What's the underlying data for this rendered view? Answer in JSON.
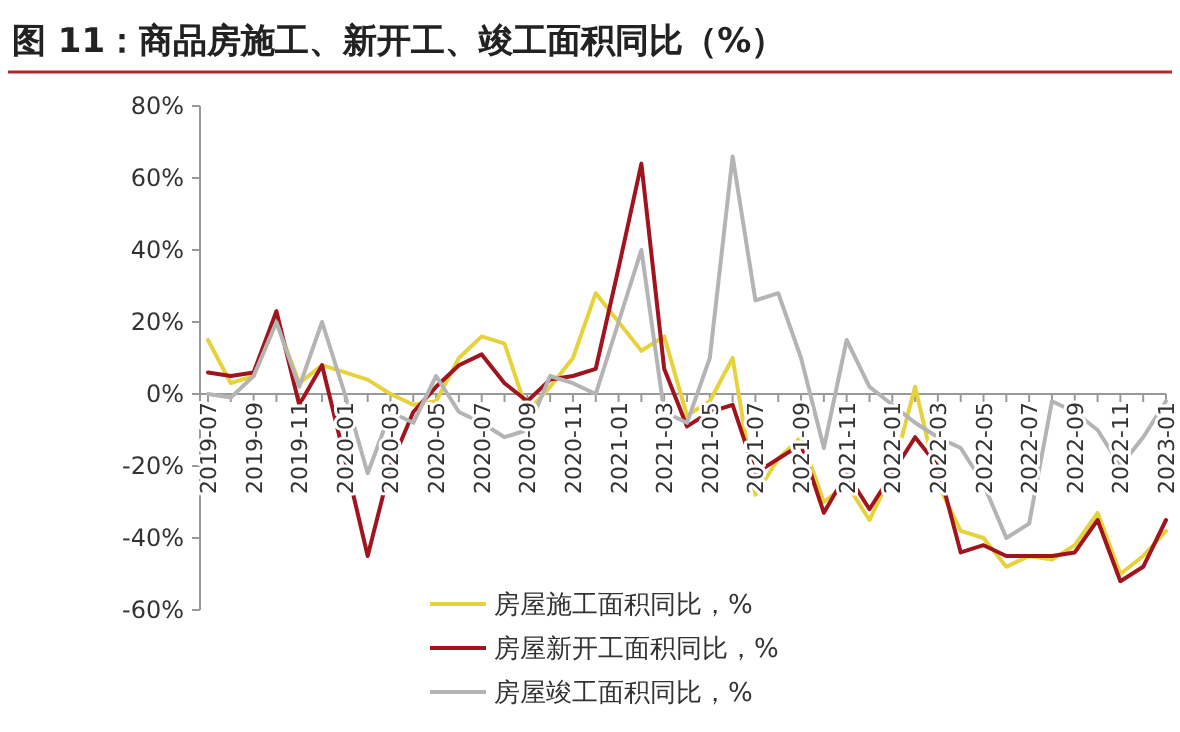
{
  "chart_data": {
    "type": "line",
    "title": "图 11：商品房施工、新开工、竣工面积同比（%）",
    "categories": [
      "2019-07",
      null,
      "2019-09",
      null,
      "2019-11",
      null,
      "2020-01",
      null,
      "2020-03",
      null,
      "2020-05",
      null,
      "2020-07",
      null,
      "2020-09",
      null,
      "2020-11",
      null,
      "2021-01",
      null,
      "2021-03",
      null,
      "2021-05",
      null,
      "2021-07",
      null,
      "2021-09",
      null,
      "2021-11",
      null,
      "2022-01",
      null,
      "2022-03",
      null,
      "2022-05",
      null,
      "2022-07",
      null,
      "2022-09",
      null,
      "2022-11",
      null,
      "2023-01"
    ],
    "series": [
      {
        "name": "房屋施工面积同比，%",
        "color": "#e6d23c",
        "values": [
          15,
          3,
          5,
          20,
          3,
          8,
          6,
          4,
          0,
          -3,
          -2,
          10,
          16,
          14,
          -5,
          2,
          10,
          28,
          20,
          12,
          16,
          -6,
          -2,
          10,
          -28,
          -18,
          -12,
          -30,
          -25,
          -35,
          -22,
          2,
          -25,
          -38,
          -40,
          -48,
          -45,
          -46,
          -42,
          -33,
          -50,
          -45,
          -38
        ]
      },
      {
        "name": "房屋新开工面积同比，%",
        "color": "#a0141e",
        "values": [
          6,
          5,
          6,
          23,
          -3,
          8,
          -18,
          -45,
          -20,
          -5,
          2,
          8,
          11,
          3,
          -2,
          4,
          5,
          7,
          35,
          64,
          7,
          -9,
          -5,
          -3,
          -22,
          -18,
          -14,
          -33,
          -22,
          -32,
          -22,
          -12,
          -20,
          -44,
          -42,
          -45,
          -45,
          -45,
          -44,
          -35,
          -52,
          -48,
          -35
        ]
      },
      {
        "name": "房屋竣工面积同比，%",
        "color": "#b4b4b4",
        "values": [
          0,
          -1,
          5,
          20,
          2,
          20,
          0,
          -22,
          -5,
          -8,
          5,
          -5,
          -8,
          -12,
          -10,
          5,
          3,
          0,
          20,
          40,
          -5,
          -8,
          10,
          66,
          26,
          28,
          10,
          -15,
          15,
          2,
          -3,
          -8,
          -12,
          -15,
          -25,
          -40,
          -36,
          -2,
          -5,
          -10,
          -20,
          -12,
          -2
        ]
      }
    ],
    "ylim": [
      -60,
      80
    ],
    "yticks": [
      {
        "value": -60,
        "label": "-60%"
      },
      {
        "value": -40,
        "label": "-40%"
      },
      {
        "value": -20,
        "label": "-20%"
      },
      {
        "value": 0,
        "label": "0%"
      },
      {
        "value": 20,
        "label": "20%"
      },
      {
        "value": 40,
        "label": "40%"
      },
      {
        "value": 60,
        "label": "60%"
      },
      {
        "value": 80,
        "label": "80%"
      }
    ],
    "legend": "bottom",
    "grid": false
  }
}
